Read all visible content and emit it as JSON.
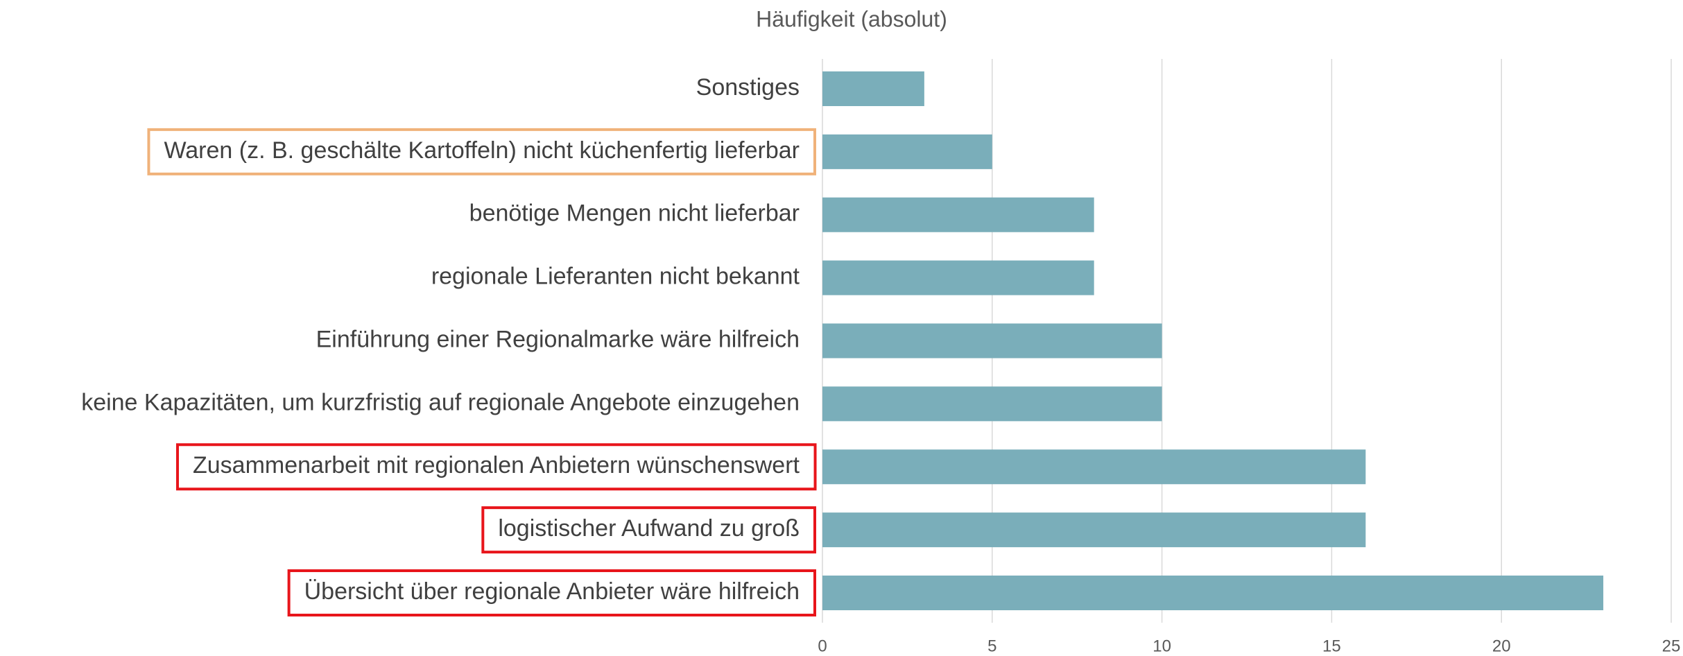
{
  "chart_data": {
    "type": "barh",
    "title": "Häufigkeit (absolut)",
    "categories": [
      "Sonstiges",
      "Waren (z. B. geschälte Kartoffeln) nicht küchenfertig lieferbar",
      "benötige Mengen nicht lieferbar",
      "regionale Lieferanten nicht bekannt",
      "Einführung einer Regionalmarke wäre hilfreich",
      "keine Kapazitäten, um kurzfristig auf regionale Angebote einzugehen",
      "Zusammenarbeit mit regionalen Anbietern wünschenswert",
      "logistischer Aufwand zu groß",
      "Übersicht über regionale Anbieter wäre hilfreich"
    ],
    "values": [
      3,
      5,
      8,
      8,
      10,
      10,
      16,
      16,
      23
    ],
    "color": "#7aaeba",
    "highlights": [
      null,
      "#f0b27a",
      null,
      null,
      null,
      null,
      "#e8151b",
      "#e8151b",
      "#e8151b"
    ],
    "xlim": [
      0,
      25
    ],
    "xticks": [
      0,
      5,
      10,
      15,
      20,
      25
    ],
    "grid": true
  }
}
